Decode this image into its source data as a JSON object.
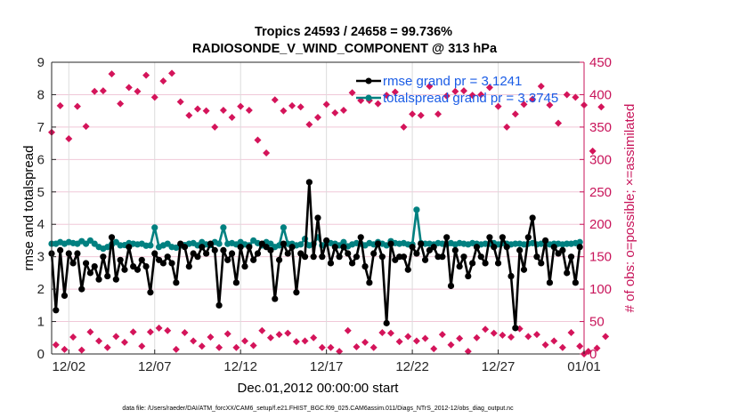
{
  "chart_data": {
    "type": "line",
    "title": [
      "Tropics 24593 / 24658 = 99.736%",
      "RADIOSONDE_V_WIND_COMPONENT @ 313 hPa"
    ],
    "xlabel": "Dec.01,2012 00:00:00 start",
    "ylabel": "rmse and totalspread",
    "y2label": "# of obs: o=possible; ×=assimilated",
    "footnote": "data file: /Users/raeder/DAI/ATM_forcXX/CAM6_setup/f.e21.FHIST_BGC.f09_025.CAM6assim.011/Diags_NTrS_2012-12/obs_diag_output.nc",
    "xlim_days": [
      0,
      31
    ],
    "x_step_hours": 6,
    "xticks": [
      {
        "day": 1,
        "label": "12/02"
      },
      {
        "day": 6,
        "label": "12/07"
      },
      {
        "day": 11,
        "label": "12/12"
      },
      {
        "day": 16,
        "label": "12/17"
      },
      {
        "day": 21,
        "label": "12/22"
      },
      {
        "day": 26,
        "label": "12/27"
      },
      {
        "day": 31,
        "label": "01/01"
      }
    ],
    "ylim": [
      0,
      9
    ],
    "yticks": [
      0,
      1,
      2,
      3,
      4,
      5,
      6,
      7,
      8,
      9
    ],
    "y2lim": [
      0,
      450
    ],
    "y2ticks": [
      0,
      50,
      100,
      150,
      200,
      250,
      300,
      350,
      400,
      450
    ],
    "grid": true,
    "legend_position": "top-right",
    "colors": {
      "rmse": "#000000",
      "totalspread": "#008080",
      "obs": "#d4145a",
      "legend_text": "#1a5ce6",
      "right_axis": "#c8145a",
      "grid": "#f0c8d8"
    },
    "series": [
      {
        "name": "rmse grand pr = 3.1241",
        "axis": "left",
        "values": [
          3.1,
          1.35,
          3.2,
          1.8,
          3.1,
          2.8,
          3.1,
          2.0,
          2.8,
          2.5,
          2.7,
          2.3,
          3.0,
          2.4,
          3.6,
          2.3,
          2.9,
          2.6,
          3.3,
          2.7,
          2.6,
          2.9,
          2.7,
          1.9,
          3.1,
          2.9,
          2.8,
          3.0,
          2.8,
          2.2,
          3.4,
          3.3,
          2.7,
          3.1,
          3.0,
          3.3,
          3.1,
          3.4,
          3.2,
          1.5,
          3.2,
          2.9,
          3.1,
          2.2,
          3.3,
          2.7,
          3.3,
          2.9,
          3.1,
          3.4,
          3.3,
          3.2,
          1.7,
          2.9,
          3.4,
          3.1,
          3.3,
          1.9,
          3.1,
          3.0,
          5.3,
          3.0,
          4.2,
          3.0,
          3.5,
          2.8,
          3.3,
          3.0,
          3.3,
          3.1,
          2.8,
          3.0,
          3.6,
          2.7,
          2.2,
          3.1,
          3.4,
          3.0,
          0.95,
          3.4,
          2.9,
          3.0,
          3.0,
          2.6,
          3.3,
          3.1,
          3.4,
          2.9,
          3.2,
          3.3,
          3.0,
          3.0,
          3.6,
          2.1,
          3.2,
          2.7,
          3.0,
          2.4,
          2.8,
          3.3,
          3.0,
          2.8,
          3.6,
          3.3,
          2.8,
          3.6,
          3.3,
          2.4,
          0.8,
          3.2,
          2.6,
          3.6,
          4.2,
          3.0,
          2.8,
          3.5,
          2.2,
          3.3,
          3.1,
          3.2,
          2.5,
          3.0,
          2.2,
          3.3
        ],
        "values_tail": [
          3.2,
          2.7,
          3.0,
          3.1,
          3.3,
          2.9,
          2.8,
          3.4,
          2.8,
          2.9,
          3.1,
          3.0,
          2.3,
          2.9,
          3.0,
          2.6,
          3.3,
          3.1,
          3.0,
          2.4,
          2.9,
          3.1,
          2.5,
          2.0,
          3.9,
          2.8,
          3.3,
          2.0,
          3.0,
          2.7
        ]
      },
      {
        "name": "totalspread grand pr = 3.3745",
        "axis": "left",
        "values": [
          3.4,
          3.4,
          3.45,
          3.4,
          3.45,
          3.42,
          3.4,
          3.48,
          3.4,
          3.5,
          3.4,
          3.3,
          3.25,
          3.3,
          3.38,
          3.45,
          3.35,
          3.36,
          3.42,
          3.4,
          3.38,
          3.4,
          3.34,
          3.35,
          3.9,
          3.3,
          3.35,
          3.4,
          3.3,
          3.28,
          3.35,
          3.36,
          3.4,
          3.42,
          3.35,
          3.45,
          3.38,
          3.36,
          3.45,
          3.4,
          3.9,
          3.4,
          3.42,
          3.38,
          3.45,
          3.38,
          3.35,
          3.5,
          3.42,
          3.35,
          3.45,
          3.4,
          3.3,
          3.35,
          3.9,
          3.4,
          3.4,
          3.35,
          3.38,
          3.55,
          3.35,
          3.4,
          3.6,
          3.35,
          3.4,
          3.42,
          3.4,
          3.35,
          3.45,
          3.32,
          3.38,
          3.42,
          3.4,
          3.35,
          3.42,
          3.38,
          3.45,
          3.4,
          3.35,
          3.48,
          3.42,
          3.4,
          3.42,
          3.38,
          3.38,
          4.45,
          3.42,
          3.4,
          3.4,
          3.38,
          3.42,
          3.4,
          3.38,
          3.42,
          3.38,
          3.42,
          3.4,
          3.38,
          3.42,
          3.4,
          3.38,
          3.4,
          3.4,
          3.42,
          3.38,
          3.42,
          3.4,
          3.38,
          3.4,
          3.4,
          3.38,
          3.4,
          3.42,
          3.38,
          3.4,
          3.4,
          3.38,
          3.4,
          3.4,
          3.38,
          3.4,
          3.4,
          3.42,
          3.45
        ]
      },
      {
        "name": "# of obs possible/assimilated",
        "axis": "right",
        "marker": "diamond",
        "values": [
          342,
          14,
          383,
          7,
          332,
          26,
          382,
          6,
          351,
          34,
          405,
          20,
          406,
          10,
          432,
          27,
          386,
          18,
          411,
          34,
          405,
          12,
          430,
          34,
          396,
          40,
          421,
          36,
          433,
          7,
          389,
          33,
          368,
          20,
          378,
          12,
          375,
          26,
          350,
          10,
          376,
          31,
          365,
          10,
          382,
          20,
          376,
          13,
          330,
          36,
          310,
          25,
          392,
          30,
          375,
          32,
          383,
          19,
          381,
          20,
          354,
          25,
          365,
          10,
          385,
          10,
          372,
          4,
          376,
          36,
          403,
          11,
          391,
          18,
          391,
          10,
          386,
          33,
          399,
          32,
          404,
          19,
          350,
          27,
          370,
          20,
          368,
          24,
          413,
          8,
          370,
          30,
          398,
          14,
          405,
          24,
          406,
          4,
          399,
          25,
          400,
          38,
          411,
          32,
          382,
          29,
          350,
          26,
          370,
          39,
          385,
          27,
          393,
          30,
          413,
          14,
          384,
          20,
          356,
          10,
          400,
          33,
          396,
          12,
          384,
          4,
          313,
          9,
          381,
          27
        ],
        "last_value": 0
      }
    ]
  }
}
